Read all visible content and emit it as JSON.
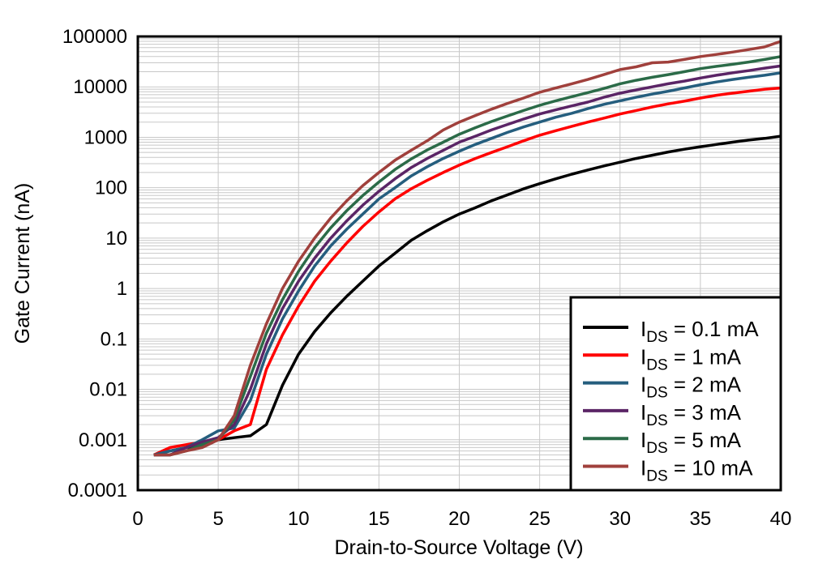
{
  "chart_data": {
    "type": "line",
    "title": "",
    "xlabel": "Drain-to-Source Voltage (V)",
    "ylabel": "Gate Current (nA)",
    "xlim": [
      0,
      40
    ],
    "ylim": [
      0.0001,
      100000
    ],
    "yscale": "log",
    "grid": true,
    "legend_position": "bottom-right",
    "x_ticks": [
      "0",
      "5",
      "10",
      "15",
      "20",
      "25",
      "30",
      "35",
      "40"
    ],
    "x_tick_values": [
      0,
      5,
      10,
      15,
      20,
      25,
      30,
      35,
      40
    ],
    "y_ticks": [
      "100000",
      "10000",
      "1000",
      "100",
      "10",
      "1",
      "0.1",
      "0.01",
      "0.001",
      "0.0001"
    ],
    "y_tick_values": [
      100000,
      10000,
      1000,
      100,
      10,
      1,
      0.1,
      0.01,
      0.001,
      0.0001
    ],
    "x": [
      1,
      2,
      3,
      4,
      5,
      6,
      7,
      8,
      9,
      10,
      11,
      12,
      13,
      14,
      15,
      16,
      17,
      18,
      19,
      20,
      21,
      22,
      23,
      24,
      25,
      26,
      27,
      28,
      29,
      30,
      31,
      32,
      33,
      34,
      35,
      36,
      37,
      38,
      39,
      40
    ],
    "series": [
      {
        "label_main": "I",
        "label_sub": "DS",
        "label_rest": " = 0.1 mA",
        "color": "#000000",
        "values": [
          0.0005,
          0.0006,
          0.0007,
          0.0008,
          0.001,
          0.0011,
          0.0012,
          0.002,
          0.012,
          0.05,
          0.14,
          0.33,
          0.7,
          1.4,
          2.8,
          5,
          9,
          14,
          21,
          30,
          40,
          55,
          72,
          95,
          120,
          150,
          185,
          225,
          270,
          320,
          380,
          440,
          510,
          580,
          650,
          720,
          800,
          880,
          950,
          1050
        ]
      },
      {
        "label_main": "I",
        "label_sub": "DS",
        "label_rest": " = 1 mA",
        "color": "#ff0000",
        "values": [
          0.0005,
          0.0007,
          0.0008,
          0.0009,
          0.001,
          0.0015,
          0.002,
          0.025,
          0.12,
          0.45,
          1.4,
          3.5,
          8,
          17,
          33,
          60,
          95,
          140,
          200,
          280,
          380,
          500,
          650,
          850,
          1100,
          1350,
          1650,
          2000,
          2400,
          2900,
          3400,
          4000,
          4600,
          5200,
          6000,
          6800,
          7500,
          8200,
          9000,
          9500
        ]
      },
      {
        "label_main": "I",
        "label_sub": "DS",
        "label_rest": " = 2 mA",
        "color": "#255e7e",
        "values": [
          0.0005,
          0.0006,
          0.0007,
          0.001,
          0.0015,
          0.0017,
          0.006,
          0.05,
          0.25,
          0.9,
          2.8,
          7,
          15,
          30,
          60,
          100,
          170,
          260,
          380,
          530,
          720,
          950,
          1250,
          1600,
          2000,
          2500,
          3000,
          3700,
          4500,
          5300,
          6200,
          7200,
          8200,
          9500,
          11000,
          12500,
          14000,
          15500,
          17000,
          19000
        ]
      },
      {
        "label_main": "I",
        "label_sub": "DS",
        "label_rest": " = 3 mA",
        "color": "#5b2566",
        "values": [
          0.0005,
          0.0005,
          0.0007,
          0.0009,
          0.0011,
          0.002,
          0.01,
          0.08,
          0.4,
          1.4,
          4,
          10,
          22,
          45,
          85,
          150,
          250,
          380,
          550,
          800,
          1050,
          1400,
          1800,
          2300,
          2900,
          3500,
          4200,
          5000,
          6200,
          7500,
          8700,
          10000,
          11500,
          13000,
          15000,
          17000,
          19000,
          21000,
          23500,
          26000
        ]
      },
      {
        "label_main": "I",
        "label_sub": "DS",
        "label_rest": " = 5 mA",
        "color": "#2b6b48",
        "values": [
          0.0005,
          0.0005,
          0.0006,
          0.0008,
          0.001,
          0.0025,
          0.018,
          0.13,
          0.6,
          2.2,
          6.5,
          16,
          35,
          70,
          130,
          230,
          370,
          560,
          800,
          1150,
          1550,
          2050,
          2650,
          3400,
          4300,
          5300,
          6400,
          7700,
          9300,
          11500,
          13500,
          15500,
          17500,
          20000,
          23000,
          25500,
          28000,
          31000,
          35000,
          40000
        ]
      },
      {
        "label_main": "I",
        "label_sub": "DS",
        "label_rest": " = 10 mA",
        "color": "#a0403c",
        "values": [
          0.0005,
          0.0005,
          0.0006,
          0.0007,
          0.001,
          0.003,
          0.03,
          0.2,
          1,
          3.5,
          10,
          25,
          55,
          110,
          200,
          350,
          550,
          850,
          1400,
          2000,
          2700,
          3600,
          4700,
          6000,
          7800,
          9500,
          11500,
          14000,
          17500,
          22000,
          25000,
          30000,
          31000,
          35000,
          40000,
          44000,
          49000,
          55000,
          62000,
          80000
        ]
      }
    ]
  }
}
